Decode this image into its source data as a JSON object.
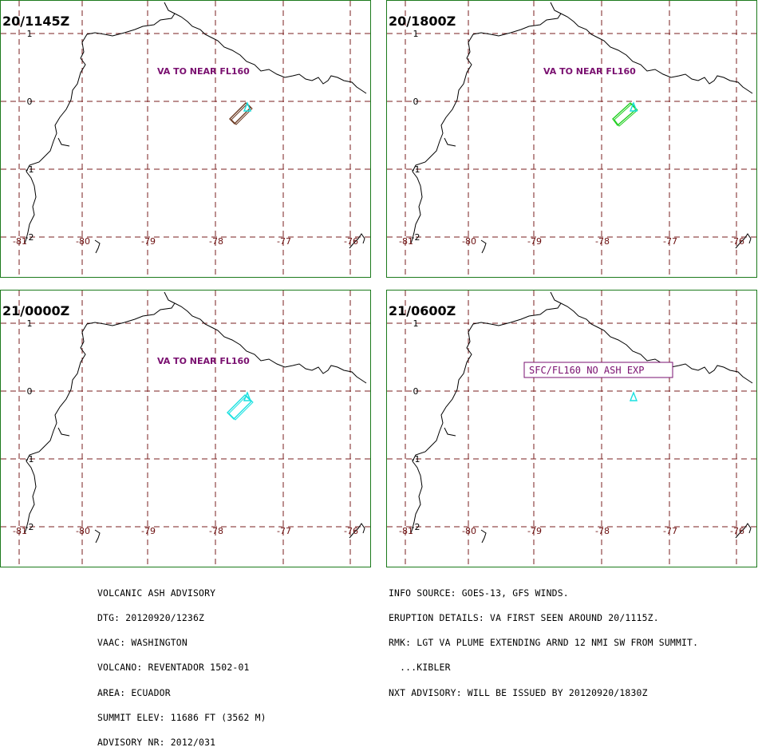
{
  "panels": [
    {
      "time": "20/1145Z",
      "label": "VA TO NEAR FL160",
      "boxed": false,
      "plume_color": "#6b3a22"
    },
    {
      "time": "20/1800Z",
      "label": "VA TO NEAR FL160",
      "boxed": false,
      "plume_color": "#1fce1f"
    },
    {
      "time": "21/0000Z",
      "label": "VA TO NEAR FL160",
      "boxed": false,
      "plume_color": "#19e0e0"
    },
    {
      "time": "21/0600Z",
      "label": "SFC/FL160 NO ASH EXP",
      "boxed": true,
      "plume_color": "#19e0e0"
    }
  ],
  "lat_labels": [
    "1",
    "0",
    "-1",
    "-2"
  ],
  "lon_labels": [
    "-81",
    "-80",
    "-79",
    "-78",
    "-77",
    "-76"
  ],
  "colors": {
    "grid": "#7a1f1f",
    "axis_label": "#6b0f0f",
    "annotation": "#7a1070",
    "coast": "#000000",
    "frame": "#1c7a1c",
    "summit_marker": "#19e0e0"
  },
  "advisory_left": [
    "VOLCANIC ASH ADVISORY",
    "DTG: 20120920/1236Z",
    "VAAC: WASHINGTON",
    "VOLCANO: REVENTADOR 1502-01",
    "AREA: ECUADOR",
    "SUMMIT ELEV: 11686 FT (3562 M)",
    "ADVISORY NR: 2012/031"
  ],
  "advisory_right": [
    "INFO SOURCE: GOES-13, GFS WINDS.",
    "ERUPTION DETAILS: VA FIRST SEEN AROUND 20/1115Z.",
    "RMK: LGT VA PLUME EXTENDING ARND 12 NMI SW FROM SUMMIT.",
    "  ...KIBLER",
    "NXT ADVISORY: WILL BE ISSUED BY 20120920/1830Z"
  ]
}
